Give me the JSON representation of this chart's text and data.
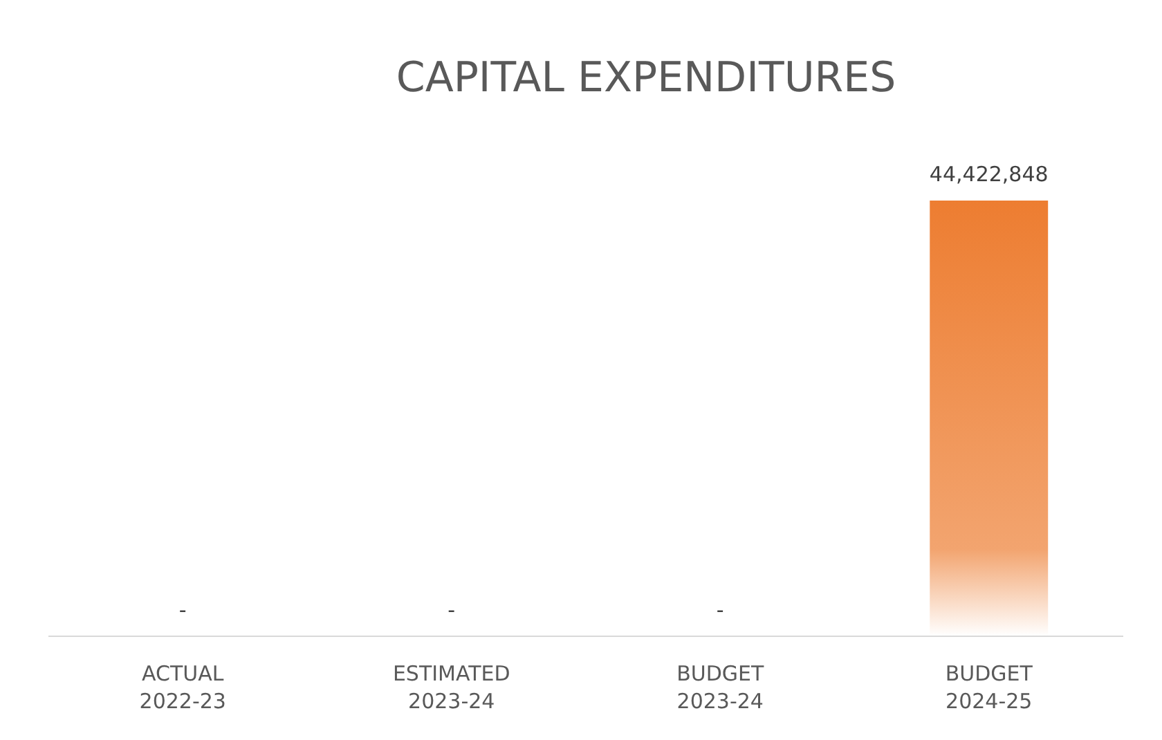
{
  "chart_data": {
    "type": "bar",
    "title": "CAPITAL EXPENDITURES",
    "categories": [
      "ACTUAL 2022-23",
      "ESTIMATED 2023-24",
      "BUDGET 2023-24",
      "BUDGET 2024-25"
    ],
    "values": [
      0,
      0,
      0,
      44422848
    ],
    "value_labels": [
      "-",
      "-",
      "-",
      "44,422,848"
    ],
    "color": "#ed7d31"
  }
}
